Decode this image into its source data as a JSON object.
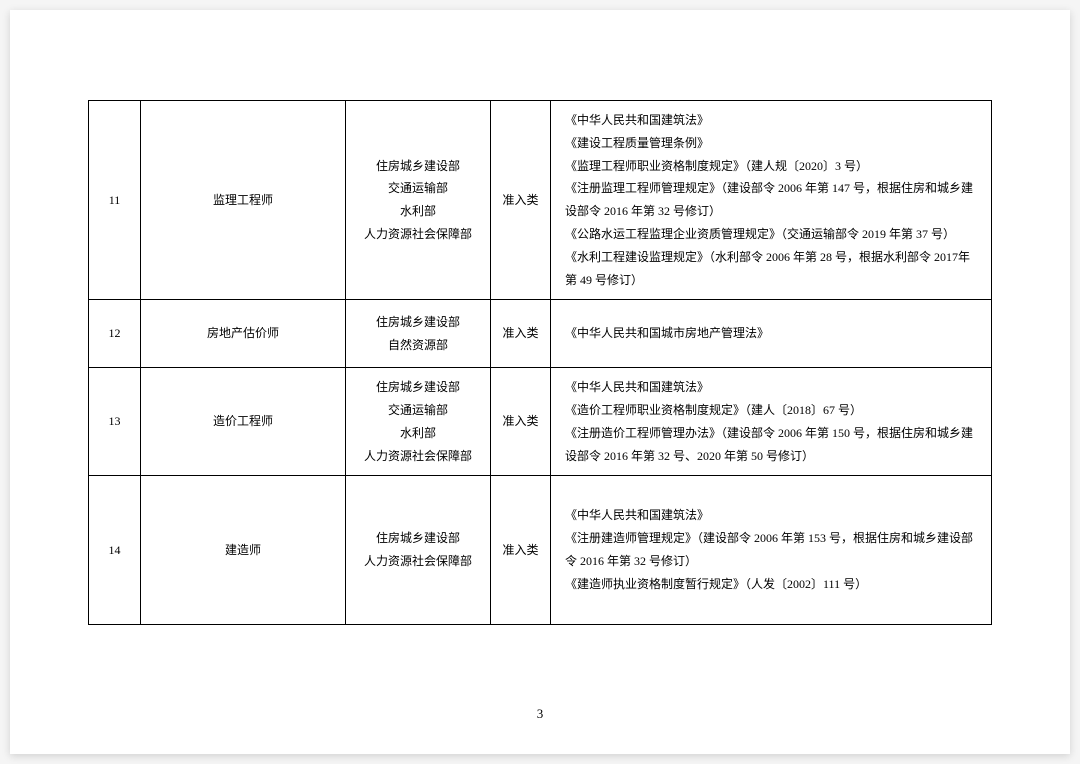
{
  "page_number": "3",
  "table": {
    "columns": {
      "num_width": 52,
      "name_width": 205,
      "dept_width": 145,
      "type_width": 60
    },
    "border_color": "#000000",
    "background_color": "#ffffff",
    "font_size": 12,
    "rows": [
      {
        "num": "11",
        "name": "监理工程师",
        "dept": [
          "住房城乡建设部",
          "交通运输部",
          "水利部",
          "人力资源社会保障部"
        ],
        "type": "准入类",
        "basis": [
          "《中华人民共和国建筑法》",
          "《建设工程质量管理条例》",
          "《监理工程师职业资格制度规定》（建人规〔2020〕3 号）",
          "《注册监理工程师管理规定》（建设部令 2006 年第 147 号，根据住房和城乡建设部令 2016 年第 32 号修订）",
          "《公路水运工程监理企业资质管理规定》（交通运输部令 2019 年第 37 号）",
          "《水利工程建设监理规定》（水利部令 2006 年第 28 号，根据水利部令 2017年第 49 号修订）"
        ]
      },
      {
        "num": "12",
        "name": "房地产估价师",
        "dept": [
          "住房城乡建设部",
          "自然资源部"
        ],
        "type": "准入类",
        "basis": [
          "《中华人民共和国城市房地产管理法》"
        ]
      },
      {
        "num": "13",
        "name": "造价工程师",
        "dept": [
          "住房城乡建设部",
          "交通运输部",
          "水利部",
          "人力资源社会保障部"
        ],
        "type": "准入类",
        "basis": [
          "《中华人民共和国建筑法》",
          "《造价工程师职业资格制度规定》（建人〔2018〕67 号）",
          "《注册造价工程师管理办法》（建设部令 2006 年第 150 号，根据住房和城乡建设部令 2016 年第 32 号、2020 年第 50 号修订）"
        ]
      },
      {
        "num": "14",
        "name": "建造师",
        "dept": [
          "住房城乡建设部",
          "人力资源社会保障部"
        ],
        "type": "准入类",
        "basis": [
          "《中华人民共和国建筑法》",
          "《注册建造师管理规定》（建设部令 2006 年第 153 号，根据住房和城乡建设部令 2016 年第 32 号修订）",
          "《建造师执业资格制度暂行规定》（人发〔2002〕111 号）"
        ]
      }
    ]
  }
}
